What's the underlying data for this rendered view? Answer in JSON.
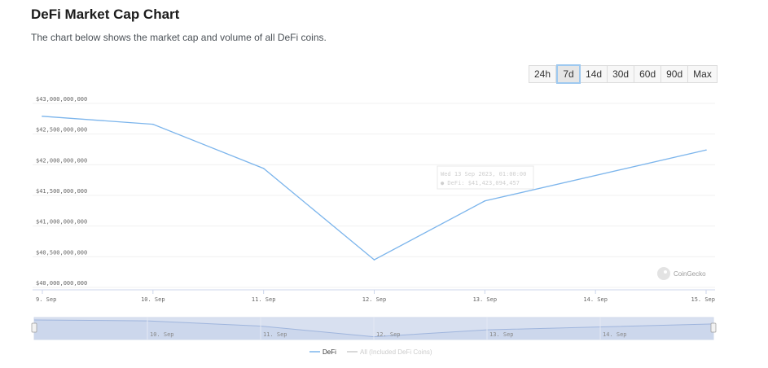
{
  "header": {
    "title": "DeFi Market Cap Chart",
    "subtitle": "The chart below shows the market cap and volume of all DeFi coins."
  },
  "range_buttons": [
    "24h",
    "7d",
    "14d",
    "30d",
    "60d",
    "90d",
    "Max"
  ],
  "active_range": "7d",
  "tooltip": {
    "line1": "Wed 13 Sep 2023, 01:00:00",
    "line2": "● DeFi: $41,423,094,457"
  },
  "watermark": "CoinGecko",
  "navigator_labels": [
    "10. Sep",
    "11. Sep",
    "12. Sep",
    "13. Sep",
    "14. Sep"
  ],
  "colors": {
    "series": "#7cb5ec",
    "inactive": "#cccccc",
    "navigator": "#d8e0f0"
  },
  "chart_data": {
    "type": "line",
    "title": "",
    "xlabel": "",
    "ylabel": "",
    "x_tick_labels": [
      "9. Sep",
      "10. Sep",
      "11. Sep",
      "12. Sep",
      "13. Sep",
      "14. Sep",
      "15. Sep"
    ],
    "y_tick_labels": [
      "$40,000,000,000",
      "$40,500,000,000",
      "$41,000,000,000",
      "$41,500,000,000",
      "$42,000,000,000",
      "$42,500,000,000",
      "$43,000,000,000"
    ],
    "ylim": [
      40000000000,
      43000000000
    ],
    "legend_position": "bottom",
    "series": [
      {
        "name": "DeFi",
        "x": [
          "2023-09-09",
          "2023-09-10",
          "2023-09-11",
          "2023-09-12",
          "2023-09-13",
          "2023-09-15"
        ],
        "values": [
          42790000000,
          42660000000,
          41940000000,
          40450000000,
          41410000000,
          42240000000
        ]
      },
      {
        "name": "All (Included DeFi Coins)",
        "visible": false,
        "x": [],
        "values": []
      }
    ]
  }
}
